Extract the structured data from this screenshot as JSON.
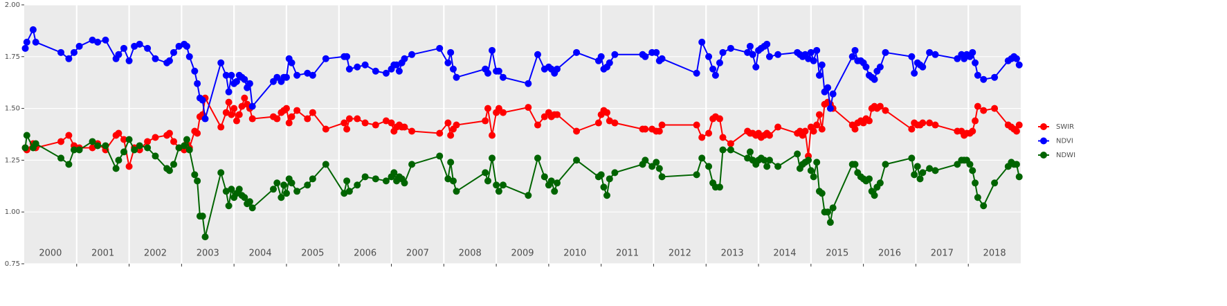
{
  "chart_data": {
    "type": "line",
    "x": [
      2000.02,
      2000.05,
      2000.17,
      2000.22,
      2000.7,
      2000.85,
      2000.95,
      2001.05,
      2001.3,
      2001.4,
      2001.55,
      2001.75,
      2001.8,
      2001.9,
      2002.0,
      2002.1,
      2002.2,
      2002.35,
      2002.5,
      2002.72,
      2002.77,
      2002.85,
      2002.95,
      2003.05,
      2003.1,
      2003.15,
      2003.25,
      2003.3,
      2003.35,
      2003.4,
      2003.45,
      2003.75,
      2003.85,
      2003.9,
      2003.95,
      2004.0,
      2004.05,
      2004.1,
      2004.15,
      2004.2,
      2004.25,
      2004.3,
      2004.35,
      2004.75,
      2004.82,
      2004.9,
      2004.95,
      2005.0,
      2005.05,
      2005.1,
      2005.2,
      2005.4,
      2005.5,
      2005.75,
      2006.1,
      2006.15,
      2006.2,
      2006.35,
      2006.5,
      2006.7,
      2006.9,
      2007.0,
      2007.05,
      2007.1,
      2007.15,
      2007.2,
      2007.25,
      2007.39,
      2007.92,
      2008.08,
      2008.13,
      2008.18,
      2008.24,
      2008.79,
      2008.84,
      2008.92,
      2009.0,
      2009.05,
      2009.13,
      2009.61,
      2009.79,
      2009.92,
      2010.0,
      2010.05,
      2010.11,
      2010.16,
      2010.53,
      2010.95,
      2011.0,
      2011.05,
      2011.11,
      2011.16,
      2011.26,
      2011.79,
      2011.84,
      2011.97,
      2012.05,
      2012.11,
      2012.16,
      2012.82,
      2012.92,
      2013.05,
      2013.13,
      2013.18,
      2013.26,
      2013.32,
      2013.47,
      2013.79,
      2013.84,
      2013.89,
      2013.95,
      2014.0,
      2014.05,
      2014.11,
      2014.16,
      2014.21,
      2014.37,
      2014.74,
      2014.79,
      2014.84,
      2014.89,
      2014.95,
      2015.0,
      2015.05,
      2015.11,
      2015.16,
      2015.21,
      2015.26,
      2015.32,
      2015.37,
      2015.42,
      2015.79,
      2015.84,
      2015.89,
      2015.95,
      2016.0,
      2016.05,
      2016.11,
      2016.16,
      2016.21,
      2016.26,
      2016.32,
      2016.42,
      2016.92,
      2016.97,
      2017.03,
      2017.08,
      2017.13,
      2017.26,
      2017.37,
      2017.79,
      2017.87,
      2017.92,
      2017.97,
      2018.03,
      2018.08,
      2018.13,
      2018.18,
      2018.29,
      2018.5,
      2018.76,
      2018.82,
      2018.87,
      2018.92,
      2018.97
    ],
    "series": [
      {
        "name": "SWIR",
        "color": "#ff0000",
        "values": [
          1.31,
          1.3,
          1.33,
          1.31,
          1.34,
          1.37,
          1.32,
          1.31,
          1.31,
          1.33,
          1.3,
          1.37,
          1.38,
          1.35,
          1.22,
          1.31,
          1.3,
          1.34,
          1.36,
          1.37,
          1.38,
          1.34,
          1.31,
          1.3,
          1.33,
          1.31,
          1.39,
          1.38,
          1.46,
          1.47,
          1.55,
          1.41,
          1.48,
          1.53,
          1.47,
          1.5,
          1.44,
          1.47,
          1.51,
          1.55,
          1.52,
          1.5,
          1.45,
          1.46,
          1.45,
          1.48,
          1.49,
          1.5,
          1.43,
          1.46,
          1.49,
          1.45,
          1.48,
          1.4,
          1.43,
          1.4,
          1.45,
          1.45,
          1.43,
          1.42,
          1.44,
          1.43,
          1.39,
          1.41,
          1.42,
          1.41,
          1.41,
          1.39,
          1.38,
          1.43,
          1.37,
          1.4,
          1.42,
          1.44,
          1.5,
          1.37,
          1.48,
          1.5,
          1.48,
          1.505,
          1.42,
          1.46,
          1.48,
          1.46,
          1.47,
          1.47,
          1.39,
          1.43,
          1.47,
          1.49,
          1.48,
          1.44,
          1.43,
          1.4,
          1.4,
          1.4,
          1.39,
          1.39,
          1.42,
          1.42,
          1.36,
          1.38,
          1.45,
          1.46,
          1.45,
          1.36,
          1.33,
          1.39,
          1.38,
          1.38,
          1.37,
          1.38,
          1.36,
          1.37,
          1.38,
          1.37,
          1.41,
          1.38,
          1.39,
          1.37,
          1.39,
          1.27,
          1.41,
          1.39,
          1.42,
          1.47,
          1.4,
          1.52,
          1.53,
          1.52,
          1.5,
          1.42,
          1.4,
          1.43,
          1.44,
          1.43,
          1.45,
          1.44,
          1.5,
          1.51,
          1.5,
          1.51,
          1.49,
          1.4,
          1.43,
          1.42,
          1.42,
          1.43,
          1.43,
          1.42,
          1.39,
          1.39,
          1.37,
          1.38,
          1.38,
          1.39,
          1.44,
          1.51,
          1.49,
          1.5,
          1.42,
          1.41,
          1.4,
          1.39,
          1.42
        ]
      },
      {
        "name": "NDVI",
        "color": "#0000ff",
        "values": [
          1.79,
          1.82,
          1.88,
          1.82,
          1.77,
          1.74,
          1.77,
          1.8,
          1.83,
          1.82,
          1.83,
          1.74,
          1.76,
          1.79,
          1.73,
          1.8,
          1.81,
          1.79,
          1.74,
          1.72,
          1.73,
          1.77,
          1.8,
          1.81,
          1.8,
          1.75,
          1.68,
          1.62,
          1.55,
          1.54,
          1.45,
          1.72,
          1.66,
          1.58,
          1.66,
          1.62,
          1.63,
          1.66,
          1.65,
          1.64,
          1.6,
          1.62,
          1.51,
          1.63,
          1.65,
          1.63,
          1.65,
          1.65,
          1.74,
          1.72,
          1.66,
          1.67,
          1.66,
          1.74,
          1.75,
          1.75,
          1.69,
          1.7,
          1.71,
          1.68,
          1.67,
          1.69,
          1.71,
          1.71,
          1.68,
          1.72,
          1.74,
          1.76,
          1.79,
          1.72,
          1.77,
          1.69,
          1.65,
          1.69,
          1.67,
          1.78,
          1.68,
          1.68,
          1.65,
          1.62,
          1.76,
          1.69,
          1.7,
          1.69,
          1.67,
          1.69,
          1.77,
          1.73,
          1.75,
          1.69,
          1.7,
          1.72,
          1.76,
          1.76,
          1.75,
          1.77,
          1.77,
          1.73,
          1.74,
          1.67,
          1.82,
          1.75,
          1.69,
          1.66,
          1.72,
          1.77,
          1.79,
          1.77,
          1.8,
          1.76,
          1.7,
          1.78,
          1.79,
          1.8,
          1.81,
          1.75,
          1.76,
          1.77,
          1.76,
          1.75,
          1.76,
          1.74,
          1.77,
          1.73,
          1.78,
          1.66,
          1.71,
          1.58,
          1.6,
          1.5,
          1.57,
          1.75,
          1.78,
          1.73,
          1.73,
          1.72,
          1.7,
          1.66,
          1.65,
          1.64,
          1.68,
          1.7,
          1.77,
          1.75,
          1.67,
          1.72,
          1.71,
          1.7,
          1.77,
          1.76,
          1.74,
          1.76,
          1.74,
          1.76,
          1.75,
          1.77,
          1.72,
          1.66,
          1.64,
          1.65,
          1.73,
          1.74,
          1.75,
          1.74,
          1.71
        ]
      },
      {
        "name": "NDWI",
        "color": "#006400",
        "values": [
          1.31,
          1.37,
          1.31,
          1.33,
          1.26,
          1.23,
          1.3,
          1.3,
          1.34,
          1.32,
          1.32,
          1.21,
          1.25,
          1.29,
          1.35,
          1.3,
          1.32,
          1.31,
          1.27,
          1.21,
          1.2,
          1.23,
          1.31,
          1.32,
          1.35,
          1.3,
          1.18,
          1.15,
          0.98,
          0.98,
          0.88,
          1.19,
          1.1,
          1.03,
          1.11,
          1.07,
          1.09,
          1.11,
          1.08,
          1.07,
          1.04,
          1.05,
          1.02,
          1.11,
          1.14,
          1.07,
          1.13,
          1.09,
          1.16,
          1.14,
          1.1,
          1.13,
          1.16,
          1.23,
          1.09,
          1.15,
          1.1,
          1.13,
          1.17,
          1.16,
          1.15,
          1.17,
          1.19,
          1.15,
          1.17,
          1.16,
          1.14,
          1.23,
          1.27,
          1.16,
          1.24,
          1.15,
          1.1,
          1.19,
          1.15,
          1.26,
          1.13,
          1.1,
          1.13,
          1.08,
          1.26,
          1.17,
          1.13,
          1.15,
          1.1,
          1.14,
          1.25,
          1.17,
          1.18,
          1.12,
          1.08,
          1.16,
          1.19,
          1.23,
          1.25,
          1.22,
          1.24,
          1.21,
          1.17,
          1.18,
          1.26,
          1.22,
          1.14,
          1.12,
          1.12,
          1.3,
          1.3,
          1.26,
          1.29,
          1.25,
          1.23,
          1.25,
          1.26,
          1.25,
          1.22,
          1.25,
          1.22,
          1.28,
          1.21,
          1.23,
          1.24,
          1.25,
          1.2,
          1.17,
          1.24,
          1.1,
          1.09,
          1.0,
          1.0,
          0.95,
          1.02,
          1.23,
          1.23,
          1.19,
          1.17,
          1.16,
          1.15,
          1.16,
          1.1,
          1.08,
          1.12,
          1.14,
          1.23,
          1.26,
          1.18,
          1.22,
          1.16,
          1.19,
          1.21,
          1.2,
          1.23,
          1.25,
          1.25,
          1.25,
          1.23,
          1.2,
          1.14,
          1.07,
          1.03,
          1.14,
          1.22,
          1.24,
          1.23,
          1.23,
          1.17
        ]
      }
    ],
    "xlim": [
      2000,
      2019
    ],
    "xticks": [
      2001,
      2002,
      2003,
      2004,
      2005,
      2006,
      2007,
      2008,
      2009,
      2010,
      2011,
      2012,
      2013,
      2014,
      2015,
      2016,
      2017,
      2018
    ],
    "year_labels": [
      "2000",
      "2001",
      "2002",
      "2003",
      "2004",
      "2005",
      "2006",
      "2007",
      "2008",
      "2009",
      "2010",
      "2011",
      "2012",
      "2013",
      "2014",
      "2015",
      "2016",
      "2017",
      "2018"
    ],
    "ylim": [
      0.75,
      2.0
    ],
    "yticks": [
      {
        "value": 0.75,
        "label": "0.75"
      },
      {
        "value": 1.0,
        "label": "1.00"
      },
      {
        "value": 1.25,
        "label": "1.25"
      },
      {
        "value": 1.5,
        "label": "1.50"
      },
      {
        "value": 1.75,
        "label": "1.75"
      },
      {
        "value": 2.0,
        "label": "2.00"
      }
    ],
    "grid": true,
    "legend": "right"
  }
}
